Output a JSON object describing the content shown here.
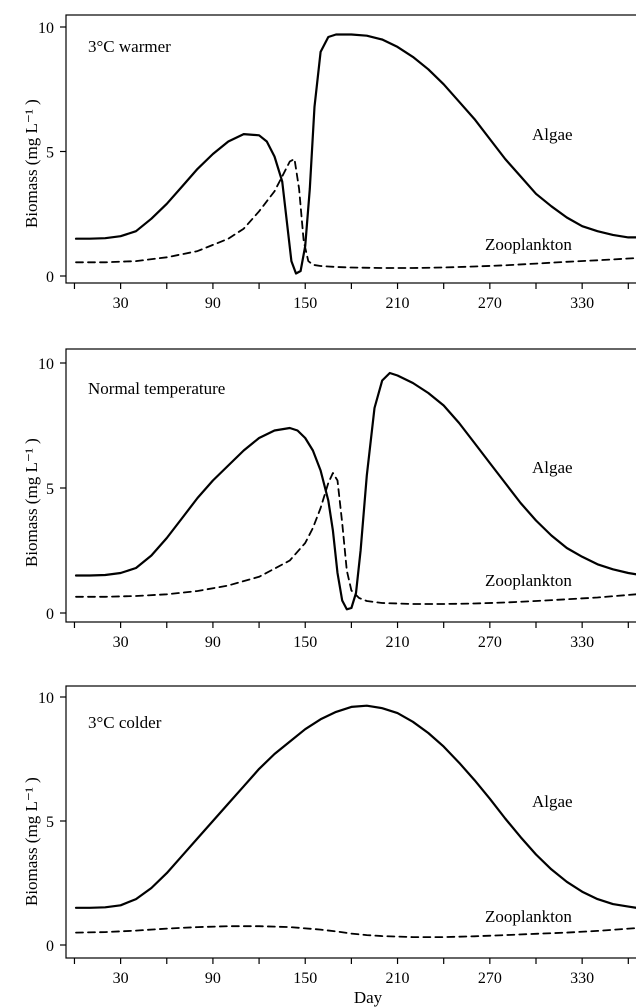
{
  "chart_data": [
    {
      "type": "line",
      "annotation": "3°C warmer",
      "ylabel": "Biomass (mg L⁻¹ )",
      "xlabel": "",
      "xlim": [
        1,
        365
      ],
      "ylim": [
        0,
        10
      ],
      "xticks": [
        30,
        90,
        150,
        210,
        270,
        330
      ],
      "yticks": [
        0,
        5,
        10
      ],
      "series": [
        {
          "name": "Algae",
          "style": "solid",
          "x": [
            1,
            10,
            20,
            30,
            40,
            50,
            60,
            70,
            80,
            90,
            100,
            110,
            120,
            125,
            130,
            135,
            138,
            141,
            144,
            147,
            150,
            153,
            156,
            160,
            165,
            170,
            180,
            190,
            200,
            210,
            220,
            230,
            240,
            250,
            260,
            270,
            280,
            290,
            300,
            310,
            320,
            330,
            340,
            350,
            360,
            365
          ],
          "y": [
            1.5,
            1.5,
            1.52,
            1.6,
            1.8,
            2.3,
            2.9,
            3.6,
            4.3,
            4.9,
            5.4,
            5.7,
            5.65,
            5.4,
            4.8,
            3.8,
            2.2,
            0.6,
            0.1,
            0.2,
            1.2,
            3.5,
            6.8,
            9.0,
            9.6,
            9.7,
            9.7,
            9.65,
            9.5,
            9.2,
            8.8,
            8.3,
            7.7,
            7.0,
            6.3,
            5.5,
            4.7,
            4.0,
            3.3,
            2.8,
            2.35,
            2.0,
            1.8,
            1.65,
            1.55,
            1.55
          ]
        },
        {
          "name": "Zooplankton",
          "style": "dashed",
          "x": [
            1,
            20,
            40,
            60,
            80,
            100,
            110,
            120,
            130,
            135,
            140,
            143,
            146,
            149,
            152,
            155,
            160,
            165,
            170,
            180,
            200,
            220,
            240,
            260,
            280,
            300,
            320,
            340,
            365
          ],
          "y": [
            0.55,
            0.55,
            0.6,
            0.75,
            1.0,
            1.5,
            1.9,
            2.6,
            3.4,
            4.0,
            4.6,
            4.7,
            3.5,
            1.4,
            0.6,
            0.45,
            0.4,
            0.38,
            0.36,
            0.34,
            0.32,
            0.32,
            0.34,
            0.38,
            0.43,
            0.5,
            0.57,
            0.63,
            0.72
          ]
        }
      ],
      "labels": {
        "algae": "Algae",
        "zooplankton": "Zooplankton"
      }
    },
    {
      "type": "line",
      "annotation": "Normal temperature",
      "ylabel": "Biomass (mg L⁻¹ )",
      "xlabel": "",
      "xlim": [
        1,
        365
      ],
      "ylim": [
        0,
        10
      ],
      "xticks": [
        30,
        90,
        150,
        210,
        270,
        330
      ],
      "yticks": [
        0,
        5,
        10
      ],
      "series": [
        {
          "name": "Algae",
          "style": "solid",
          "x": [
            1,
            10,
            20,
            30,
            40,
            50,
            60,
            70,
            80,
            90,
            100,
            110,
            120,
            130,
            140,
            145,
            150,
            155,
            160,
            165,
            168,
            171,
            174,
            177,
            180,
            183,
            186,
            190,
            195,
            200,
            205,
            210,
            220,
            230,
            240,
            250,
            260,
            270,
            280,
            290,
            300,
            310,
            320,
            330,
            340,
            350,
            360,
            365
          ],
          "y": [
            1.5,
            1.5,
            1.52,
            1.6,
            1.8,
            2.3,
            3.0,
            3.8,
            4.6,
            5.3,
            5.9,
            6.5,
            7.0,
            7.3,
            7.4,
            7.3,
            7.0,
            6.5,
            5.7,
            4.5,
            3.3,
            1.6,
            0.5,
            0.15,
            0.2,
            0.8,
            2.5,
            5.5,
            8.2,
            9.3,
            9.6,
            9.5,
            9.2,
            8.8,
            8.3,
            7.6,
            6.8,
            6.0,
            5.2,
            4.4,
            3.7,
            3.1,
            2.6,
            2.25,
            1.95,
            1.75,
            1.6,
            1.55
          ]
        },
        {
          "name": "Zooplankton",
          "style": "dashed",
          "x": [
            1,
            20,
            40,
            60,
            80,
            100,
            120,
            140,
            150,
            155,
            160,
            165,
            168,
            171,
            174,
            177,
            180,
            185,
            190,
            200,
            220,
            240,
            260,
            280,
            300,
            320,
            340,
            365
          ],
          "y": [
            0.65,
            0.65,
            0.68,
            0.75,
            0.88,
            1.1,
            1.45,
            2.1,
            2.8,
            3.4,
            4.2,
            5.2,
            5.6,
            5.3,
            3.6,
            1.7,
            0.9,
            0.6,
            0.48,
            0.4,
            0.36,
            0.36,
            0.38,
            0.42,
            0.48,
            0.55,
            0.62,
            0.75
          ]
        }
      ],
      "labels": {
        "algae": "Algae",
        "zooplankton": "Zooplankton"
      }
    },
    {
      "type": "line",
      "annotation": "3°C colder",
      "ylabel": "Biomass (mg L⁻¹ )",
      "xlabel": "Day",
      "xlim": [
        1,
        365
      ],
      "ylim": [
        0,
        10
      ],
      "xticks": [
        30,
        90,
        150,
        210,
        270,
        330
      ],
      "yticks": [
        0,
        5,
        10
      ],
      "series": [
        {
          "name": "Algae",
          "style": "solid",
          "x": [
            1,
            10,
            20,
            30,
            40,
            50,
            60,
            70,
            80,
            90,
            100,
            110,
            120,
            130,
            140,
            150,
            160,
            170,
            180,
            190,
            200,
            210,
            220,
            230,
            240,
            250,
            260,
            270,
            280,
            290,
            300,
            310,
            320,
            330,
            340,
            350,
            360,
            365
          ],
          "y": [
            1.5,
            1.5,
            1.52,
            1.6,
            1.85,
            2.3,
            2.9,
            3.6,
            4.3,
            5.0,
            5.7,
            6.4,
            7.1,
            7.7,
            8.2,
            8.7,
            9.1,
            9.4,
            9.6,
            9.65,
            9.55,
            9.35,
            9.0,
            8.55,
            8.0,
            7.35,
            6.65,
            5.9,
            5.1,
            4.35,
            3.65,
            3.05,
            2.55,
            2.15,
            1.85,
            1.65,
            1.55,
            1.5
          ]
        },
        {
          "name": "Zooplankton",
          "style": "dashed",
          "x": [
            1,
            20,
            40,
            60,
            80,
            100,
            120,
            140,
            160,
            170,
            180,
            190,
            200,
            220,
            240,
            260,
            280,
            300,
            320,
            340,
            365
          ],
          "y": [
            0.5,
            0.52,
            0.58,
            0.66,
            0.72,
            0.76,
            0.76,
            0.72,
            0.62,
            0.55,
            0.46,
            0.4,
            0.36,
            0.32,
            0.32,
            0.35,
            0.4,
            0.45,
            0.5,
            0.57,
            0.68
          ]
        }
      ],
      "labels": {
        "algae": "Algae",
        "zooplankton": "Zooplankton"
      }
    }
  ],
  "colors": {
    "line": "#000000",
    "background": "#ffffff"
  }
}
